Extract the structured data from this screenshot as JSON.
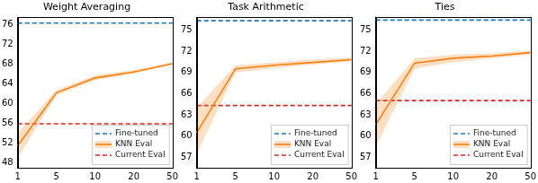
{
  "chart_data": [
    {
      "type": "line",
      "title": "Weight Averaging",
      "categories": [
        1,
        5,
        10,
        20,
        50
      ],
      "ylim": [
        47,
        77.5
      ],
      "yticks": [
        48,
        52,
        56,
        60,
        64,
        68,
        72,
        76
      ],
      "grid": false,
      "legend": "lower right",
      "series": [
        {
          "name": "Fine-tuned",
          "color": "#1f77b4",
          "line_style": "dashed",
          "values": [
            76.3,
            76.3,
            76.3,
            76.3,
            76.3
          ]
        },
        {
          "name": "KNN Eval",
          "color": "#ff7f0e",
          "line_style": "solid",
          "values": [
            51.5,
            62.2,
            65.2,
            66.4,
            68.1
          ],
          "lower": [
            49.0,
            61.7,
            64.7,
            66.1,
            67.9
          ],
          "upper": [
            54.0,
            62.7,
            65.7,
            66.8,
            68.3
          ]
        },
        {
          "name": "Current Eval",
          "color": "#d62728",
          "line_style": "dashed",
          "values": [
            55.9,
            55.9,
            55.9,
            55.9,
            55.9
          ]
        }
      ]
    },
    {
      "type": "line",
      "title": "Task Arithmetic",
      "categories": [
        1,
        5,
        10,
        20,
        50
      ],
      "ylim": [
        55.5,
        76.8
      ],
      "yticks": [
        57,
        60,
        63,
        66,
        69,
        72,
        75
      ],
      "grid": false,
      "legend": "lower right",
      "series": [
        {
          "name": "Fine-tuned",
          "color": "#1f77b4",
          "line_style": "dashed",
          "values": [
            76.3,
            76.3,
            76.3,
            76.3,
            76.3
          ]
        },
        {
          "name": "KNN Eval",
          "color": "#ff7f0e",
          "line_style": "solid",
          "values": [
            60.5,
            69.5,
            70.0,
            70.4,
            70.8
          ],
          "lower": [
            57.5,
            69.0,
            69.6,
            70.1,
            70.5
          ],
          "upper": [
            64.0,
            70.0,
            70.4,
            70.8,
            71.1
          ]
        },
        {
          "name": "Current Eval",
          "color": "#d62728",
          "line_style": "dashed",
          "values": [
            64.3,
            64.3,
            64.3,
            64.3,
            64.3
          ]
        }
      ]
    },
    {
      "type": "line",
      "title": "Ties",
      "categories": [
        1,
        5,
        10,
        20,
        50
      ],
      "ylim": [
        55.5,
        76.8
      ],
      "yticks": [
        57,
        60,
        63,
        66,
        69,
        72,
        75
      ],
      "grid": false,
      "legend": "lower right",
      "series": [
        {
          "name": "Fine-tuned",
          "color": "#1f77b4",
          "line_style": "dashed",
          "values": [
            76.4,
            76.4,
            76.4,
            76.4,
            76.4
          ]
        },
        {
          "name": "KNN Eval",
          "color": "#ff7f0e",
          "line_style": "solid",
          "values": [
            61.6,
            70.3,
            71.0,
            71.3,
            71.8
          ],
          "lower": [
            58.5,
            69.5,
            70.4,
            71.0,
            71.5
          ],
          "upper": [
            64.5,
            71.0,
            71.5,
            71.7,
            72.1
          ]
        },
        {
          "name": "Current Eval",
          "color": "#d62728",
          "line_style": "dashed",
          "values": [
            65.0,
            65.0,
            65.0,
            65.0,
            65.0
          ]
        }
      ]
    }
  ]
}
